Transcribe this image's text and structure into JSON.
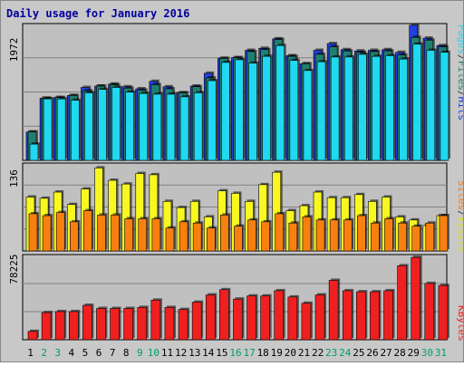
{
  "chart_data": [
    {
      "type": "bar",
      "title": "Daily usage for January 2016",
      "categories": [
        "1",
        "2",
        "3",
        "4",
        "5",
        "6",
        "7",
        "8",
        "9",
        "10",
        "11",
        "12",
        "13",
        "14",
        "15",
        "16",
        "17",
        "18",
        "19",
        "20",
        "21",
        "22",
        "23",
        "24",
        "25",
        "26",
        "27",
        "28",
        "29",
        "30",
        "31"
      ],
      "weekend_days": [
        "2",
        "3",
        "9",
        "10",
        "16",
        "17",
        "23",
        "24",
        "30",
        "31"
      ],
      "y_max_label": "1972",
      "ylim": [
        0,
        1972
      ],
      "legend": [
        "Pages",
        "/",
        "Files",
        "/",
        "Hits"
      ],
      "grid": true,
      "series": [
        {
          "name": "Hits",
          "color": "#2040e0",
          "values": [
            420,
            920,
            930,
            960,
            1080,
            1100,
            1130,
            1090,
            1060,
            1170,
            1090,
            1000,
            1100,
            1290,
            1510,
            1520,
            1630,
            1660,
            1800,
            1550,
            1430,
            1630,
            1730,
            1640,
            1620,
            1630,
            1640,
            1600,
            2000,
            1810,
            1700
          ]
        },
        {
          "name": "Files",
          "color": "#208070",
          "values": [
            420,
            920,
            930,
            960,
            1030,
            1100,
            1120,
            1070,
            1040,
            1120,
            1060,
            1000,
            1090,
            1220,
            1510,
            1520,
            1610,
            1640,
            1790,
            1540,
            1430,
            1570,
            1680,
            1620,
            1600,
            1610,
            1620,
            1560,
            1820,
            1780,
            1680
          ]
        },
        {
          "name": "Pages",
          "color": "#20d8f0",
          "values": [
            240,
            910,
            910,
            890,
            1000,
            1050,
            1080,
            1010,
            990,
            980,
            980,
            940,
            1000,
            1180,
            1450,
            1490,
            1440,
            1540,
            1700,
            1480,
            1330,
            1460,
            1530,
            1530,
            1570,
            1540,
            1550,
            1500,
            1720,
            1630,
            1600
          ]
        }
      ]
    },
    {
      "type": "bar",
      "y_max_label": "136",
      "ylim": [
        0,
        136
      ],
      "legend": [
        "Sites",
        "/",
        "Visits"
      ],
      "grid": true,
      "series": [
        {
          "name": "Visits",
          "color": "#f8f820",
          "values": [
            87,
            85,
            95,
            75,
            100,
            134,
            114,
            108,
            125,
            123,
            80,
            70,
            80,
            55,
            97,
            93,
            80,
            107,
            127,
            65,
            73,
            95,
            86,
            86,
            91,
            80,
            87,
            55,
            50,
            41,
            57
          ]
        },
        {
          "name": "Sites",
          "color": "#f88010",
          "values": [
            60,
            57,
            62,
            47,
            65,
            58,
            58,
            52,
            52,
            52,
            37,
            47,
            45,
            37,
            58,
            40,
            50,
            47,
            60,
            45,
            55,
            50,
            50,
            50,
            57,
            45,
            52,
            45,
            40,
            45,
            57
          ]
        }
      ]
    },
    {
      "type": "bar",
      "y_max_label": "78225",
      "ylim": [
        0,
        78225
      ],
      "legend": [
        "KBytes"
      ],
      "grid": true,
      "series": [
        {
          "name": "KBytes",
          "color": "#f02020",
          "values": [
            8000,
            26000,
            27000,
            27000,
            33000,
            30000,
            30000,
            30000,
            31000,
            38000,
            31000,
            29000,
            36000,
            43000,
            48000,
            39000,
            42000,
            42000,
            47000,
            41000,
            35000,
            43000,
            57000,
            47000,
            46000,
            46000,
            47000,
            71000,
            79000,
            54000,
            52000
          ]
        }
      ]
    }
  ]
}
